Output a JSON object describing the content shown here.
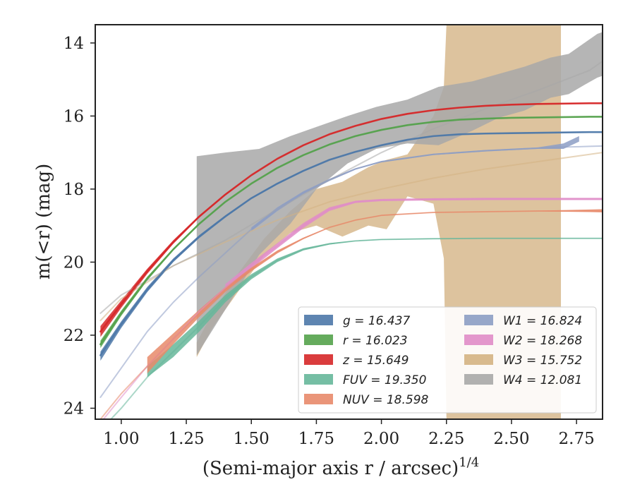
{
  "chart_data": {
    "type": "line",
    "title": "",
    "xlabel": "(Semi-major axis r / arcsec)",
    "xlabel_super": "1/4",
    "ylabel": "m(<r) (mag)",
    "xlim": [
      0.9,
      2.85
    ],
    "ylim": [
      24.3,
      13.5
    ],
    "y_inverted": true,
    "xticks": [
      "1.00",
      "1.25",
      "1.50",
      "1.75",
      "2.00",
      "2.25",
      "2.50",
      "2.75"
    ],
    "yticks": [
      "14",
      "16",
      "18",
      "20",
      "22",
      "24"
    ],
    "legend_position": "lower-right",
    "legend_columns": 2,
    "series": [
      {
        "id": "g",
        "name": "g = 16.437",
        "color": "#4c78a8",
        "x": [
          0.92,
          1.0,
          1.1,
          1.2,
          1.3,
          1.4,
          1.5,
          1.6,
          1.7,
          1.8,
          1.9,
          2.0,
          2.1,
          2.2,
          2.3,
          2.4,
          2.5,
          2.6,
          2.7,
          2.8,
          2.85
        ],
        "y": [
          22.55,
          21.7,
          20.75,
          19.95,
          19.3,
          18.75,
          18.25,
          17.85,
          17.5,
          17.2,
          16.98,
          16.8,
          16.65,
          16.55,
          16.5,
          16.48,
          16.47,
          16.46,
          16.45,
          16.44,
          16.44
        ],
        "band_x": [
          0.92,
          1.0,
          1.1,
          1.2,
          1.3,
          1.4,
          1.5,
          1.6,
          1.7,
          1.8,
          1.9,
          2.0,
          2.1,
          2.2,
          2.3,
          2.4,
          2.5,
          2.6,
          2.7,
          2.8,
          2.85
        ],
        "band_hi": [
          22.45,
          21.62,
          20.68,
          19.9,
          19.26,
          18.72,
          18.23,
          17.83,
          17.48,
          17.19,
          16.97,
          16.79,
          16.64,
          16.54,
          16.49,
          16.47,
          16.46,
          16.45,
          16.44,
          16.43,
          16.43
        ],
        "band_lo": [
          22.7,
          21.8,
          20.82,
          20.0,
          19.34,
          18.78,
          18.27,
          17.87,
          17.52,
          17.21,
          16.99,
          16.81,
          16.66,
          16.56,
          16.51,
          16.49,
          16.48,
          16.47,
          16.46,
          16.45,
          16.45
        ]
      },
      {
        "id": "r",
        "name": "r = 16.023",
        "color": "#54a24b",
        "x": [
          0.92,
          1.0,
          1.1,
          1.2,
          1.3,
          1.4,
          1.5,
          1.6,
          1.7,
          1.8,
          1.9,
          2.0,
          2.1,
          2.2,
          2.3,
          2.4,
          2.5,
          2.6,
          2.7,
          2.8,
          2.85
        ],
        "y": [
          22.25,
          21.4,
          20.45,
          19.65,
          18.95,
          18.35,
          17.85,
          17.42,
          17.07,
          16.78,
          16.55,
          16.38,
          16.25,
          16.16,
          16.1,
          16.07,
          16.05,
          16.04,
          16.03,
          16.02,
          16.02
        ],
        "band_x": [
          0.92,
          1.0,
          1.1,
          1.2,
          1.3,
          1.4,
          1.5,
          1.6,
          1.7,
          1.8,
          1.9,
          2.0,
          2.1,
          2.2,
          2.3,
          2.4,
          2.5,
          2.6,
          2.7,
          2.8,
          2.85
        ],
        "band_hi": [
          22.15,
          21.33,
          20.4,
          19.62,
          18.93,
          18.34,
          17.84,
          17.41,
          17.06,
          16.77,
          16.54,
          16.37,
          16.24,
          16.15,
          16.09,
          16.06,
          16.04,
          16.03,
          16.02,
          16.01,
          16.01
        ],
        "band_lo": [
          22.35,
          21.47,
          20.5,
          19.68,
          18.97,
          18.36,
          17.86,
          17.43,
          17.08,
          16.79,
          16.56,
          16.39,
          16.26,
          16.17,
          16.11,
          16.08,
          16.06,
          16.05,
          16.04,
          16.03,
          16.03
        ]
      },
      {
        "id": "z",
        "name": "z = 15.649",
        "color": "#d62728",
        "x": [
          0.92,
          1.0,
          1.1,
          1.2,
          1.3,
          1.4,
          1.5,
          1.6,
          1.7,
          1.8,
          1.9,
          2.0,
          2.1,
          2.2,
          2.3,
          2.4,
          2.5,
          2.6,
          2.7,
          2.8,
          2.85
        ],
        "y": [
          21.9,
          21.15,
          20.25,
          19.45,
          18.75,
          18.15,
          17.62,
          17.17,
          16.8,
          16.5,
          16.27,
          16.08,
          15.94,
          15.84,
          15.77,
          15.72,
          15.69,
          15.67,
          15.66,
          15.65,
          15.65
        ],
        "band_x": [
          0.92,
          1.0,
          1.1,
          1.2,
          1.3,
          1.4,
          1.5,
          1.6,
          1.7,
          1.8,
          1.9,
          2.0,
          2.1,
          2.2,
          2.3,
          2.4,
          2.5,
          2.6,
          2.7,
          2.8,
          2.85
        ],
        "band_hi": [
          21.75,
          21.05,
          20.18,
          19.4,
          18.72,
          18.13,
          17.61,
          17.16,
          16.79,
          16.49,
          16.26,
          16.07,
          15.93,
          15.83,
          15.76,
          15.71,
          15.68,
          15.66,
          15.65,
          15.64,
          15.64
        ],
        "band_lo": [
          22.05,
          21.25,
          20.32,
          19.5,
          18.78,
          18.17,
          17.63,
          17.18,
          16.81,
          16.51,
          16.28,
          16.09,
          15.95,
          15.85,
          15.78,
          15.73,
          15.7,
          15.68,
          15.67,
          15.66,
          15.66
        ]
      },
      {
        "id": "FUV",
        "name": "FUV = 19.350",
        "color": "#66b79a",
        "x": [
          0.92,
          1.0,
          1.1,
          1.2,
          1.3,
          1.4,
          1.5,
          1.6,
          1.7,
          1.8,
          1.9,
          2.0,
          2.2,
          2.4,
          2.6,
          2.8,
          2.85
        ],
        "y": [
          24.6,
          24.0,
          23.15,
          22.45,
          21.75,
          21.0,
          20.4,
          19.95,
          19.65,
          19.5,
          19.42,
          19.38,
          19.36,
          19.35,
          19.35,
          19.35,
          19.35
        ],
        "band_x": [
          1.1,
          1.2,
          1.3,
          1.4,
          1.5,
          1.6,
          1.7,
          1.8,
          1.9,
          2.0,
          2.2,
          2.4,
          2.6,
          2.8,
          2.85
        ],
        "band_hi": [
          22.85,
          22.25,
          21.6,
          20.9,
          20.33,
          19.9,
          19.62,
          19.48,
          19.41,
          19.37,
          19.35,
          19.34,
          19.34,
          19.34,
          19.34
        ],
        "band_lo": [
          23.15,
          22.6,
          21.9,
          21.1,
          20.47,
          20.0,
          19.68,
          19.52,
          19.43,
          19.39,
          19.37,
          19.36,
          19.36,
          19.36,
          19.36
        ]
      },
      {
        "id": "NUV",
        "name": "NUV = 18.598",
        "color": "#e8896a",
        "x": [
          0.92,
          1.0,
          1.1,
          1.2,
          1.3,
          1.4,
          1.5,
          1.6,
          1.7,
          1.8,
          1.9,
          2.0,
          2.2,
          2.4,
          2.6,
          2.8,
          2.85
        ],
        "y": [
          24.3,
          23.6,
          22.85,
          22.1,
          21.4,
          20.75,
          20.2,
          19.72,
          19.35,
          19.05,
          18.85,
          18.72,
          18.64,
          18.62,
          18.6,
          18.6,
          18.6
        ],
        "band_x": [
          1.1,
          1.2,
          1.3,
          1.4,
          1.5,
          1.6,
          1.7,
          1.8,
          1.9,
          2.0,
          2.2,
          2.4,
          2.6,
          2.8,
          2.85
        ],
        "band_hi": [
          22.6,
          21.95,
          21.3,
          20.68,
          20.15,
          19.68,
          19.33,
          19.04,
          18.84,
          18.71,
          18.63,
          18.61,
          18.59,
          18.56,
          18.55
        ],
        "band_lo": [
          23.05,
          22.25,
          21.5,
          20.82,
          20.25,
          19.76,
          19.37,
          19.06,
          18.86,
          18.73,
          18.65,
          18.63,
          18.61,
          18.63,
          18.64
        ]
      },
      {
        "id": "W1",
        "name": "W1 = 16.824",
        "color": "#8c9dc4",
        "x": [
          0.92,
          1.0,
          1.1,
          1.2,
          1.3,
          1.4,
          1.5,
          1.6,
          1.7,
          1.8,
          1.9,
          2.0,
          2.2,
          2.4,
          2.6,
          2.7,
          2.76,
          2.8,
          2.85
        ],
        "y": [
          23.7,
          22.9,
          21.9,
          21.1,
          20.4,
          19.75,
          19.1,
          18.55,
          18.1,
          17.75,
          17.45,
          17.25,
          17.05,
          16.95,
          16.88,
          16.85,
          16.84,
          16.83,
          16.82
        ],
        "band_x": [
          1.5,
          1.6,
          1.7,
          1.8,
          1.9,
          2.0,
          2.2,
          2.4,
          2.6,
          2.7,
          2.76
        ],
        "band_hi": [
          19.05,
          18.5,
          18.06,
          17.72,
          17.43,
          17.23,
          17.03,
          16.93,
          16.86,
          16.75,
          16.55
        ],
        "band_lo": [
          19.15,
          18.6,
          18.14,
          17.78,
          17.47,
          17.27,
          17.07,
          16.97,
          16.9,
          16.9,
          16.7
        ]
      },
      {
        "id": "W2",
        "name": "W2 = 18.268",
        "color": "#e08cc8",
        "x": [
          0.92,
          1.0,
          1.1,
          1.2,
          1.3,
          1.4,
          1.5,
          1.6,
          1.7,
          1.8,
          1.9,
          2.0,
          2.2,
          2.4,
          2.6,
          2.8,
          2.85
        ],
        "y": [
          24.4,
          23.7,
          22.85,
          22.1,
          21.35,
          20.7,
          20.1,
          19.55,
          19.0,
          18.55,
          18.35,
          18.3,
          18.28,
          18.27,
          18.27,
          18.27,
          18.27
        ],
        "band_x": [
          1.4,
          1.5,
          1.6,
          1.7,
          1.8,
          1.9,
          2.0,
          2.2,
          2.4,
          2.6,
          2.8,
          2.85
        ],
        "band_hi": [
          20.6,
          20.02,
          19.48,
          18.93,
          18.5,
          18.32,
          18.27,
          18.25,
          18.24,
          18.24,
          18.24,
          18.24
        ],
        "band_lo": [
          20.8,
          20.18,
          19.62,
          19.07,
          18.6,
          18.38,
          18.33,
          18.31,
          18.3,
          18.3,
          18.3,
          18.3
        ]
      },
      {
        "id": "W3",
        "name": "W3 = 15.752",
        "color": "#d4b283",
        "x": [
          0.92,
          1.0,
          1.2,
          1.4,
          1.6,
          1.8,
          2.0,
          2.2,
          2.4,
          2.6,
          2.8,
          2.85
        ],
        "y": [
          21.6,
          21.0,
          20.1,
          19.45,
          18.85,
          18.35,
          18.0,
          17.7,
          17.45,
          17.25,
          17.05,
          17.0
        ],
        "band_x": [
          1.29,
          1.35,
          1.45,
          1.55,
          1.65,
          1.75,
          1.85,
          1.95,
          2.02,
          2.1,
          2.2,
          2.24,
          2.25,
          2.28,
          2.32,
          2.36,
          2.42,
          2.48,
          2.55,
          2.62,
          2.66,
          2.69
        ],
        "band_hi": [
          22.2,
          21.4,
          20.3,
          19.35,
          18.6,
          18.0,
          17.8,
          17.4,
          17.2,
          17.05,
          16.0,
          15.2,
          13.5,
          13.5,
          13.5,
          13.5,
          13.5,
          13.5,
          13.5,
          13.5,
          13.5,
          13.5
        ],
        "band_lo": [
          22.6,
          21.8,
          20.8,
          19.8,
          19.2,
          19.0,
          19.3,
          19.0,
          19.1,
          18.2,
          18.4,
          19.9,
          24.3,
          24.3,
          24.3,
          24.3,
          24.3,
          24.3,
          24.3,
          24.3,
          24.3,
          24.3
        ]
      },
      {
        "id": "W4",
        "name": "W4 = 12.081",
        "color": "#a8a8a8",
        "x": [
          0.92,
          1.0,
          1.2,
          1.4,
          1.6,
          1.8,
          2.0,
          2.2,
          2.4,
          2.6,
          2.8,
          2.85
        ],
        "y": [
          21.4,
          20.9,
          20.1,
          19.4,
          18.55,
          17.75,
          17.0,
          16.35,
          15.8,
          15.3,
          14.75,
          14.5
        ],
        "band_x": [
          1.29,
          1.4,
          1.53,
          1.65,
          1.75,
          1.87,
          1.98,
          2.1,
          2.22,
          2.35,
          2.45,
          2.55,
          2.65,
          2.72,
          2.78,
          2.83,
          2.85
        ],
        "band_hi": [
          17.1,
          17.0,
          16.9,
          16.55,
          16.3,
          16.0,
          15.75,
          15.55,
          15.2,
          15.05,
          14.85,
          14.65,
          14.4,
          14.3,
          14.0,
          13.75,
          13.7
        ],
        "band_lo": [
          22.55,
          21.3,
          19.8,
          18.95,
          18.0,
          17.3,
          16.9,
          16.75,
          16.8,
          16.4,
          16.05,
          15.85,
          15.5,
          15.4,
          15.15,
          14.95,
          14.9
        ]
      }
    ]
  }
}
